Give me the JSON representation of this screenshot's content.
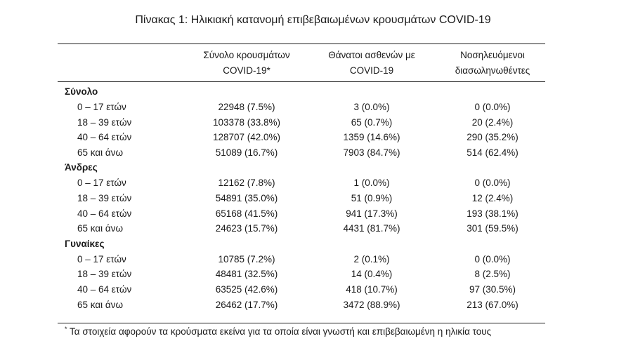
{
  "title": "Πίνακας 1: Ηλικιακή κατανομή επιβεβαιωμένων κρουσμάτων COVID-19",
  "headers": [
    {
      "line1": "Σύνολο κρουσμάτων",
      "line2": "COVID-19*"
    },
    {
      "line1": "Θάνατοι ασθενών με",
      "line2": "COVID-19"
    },
    {
      "line1": "Νοσηλευόμενοι",
      "line2": "διασωληνωθέντες"
    }
  ],
  "groups": [
    {
      "label": "Σύνολο",
      "rows": [
        {
          "age": "0 – 17 ετών",
          "cases": "22948 (7.5%)",
          "deaths": "3 (0.0%)",
          "intubated": "0 (0.0%)"
        },
        {
          "age": "18 – 39 ετών",
          "cases": "103378 (33.8%)",
          "deaths": "65 (0.7%)",
          "intubated": "20 (2.4%)"
        },
        {
          "age": "40 – 64 ετών",
          "cases": "128707 (42.0%)",
          "deaths": "1359 (14.6%)",
          "intubated": "290 (35.2%)"
        },
        {
          "age": "65 και άνω",
          "cases": "51089 (16.7%)",
          "deaths": "7903 (84.7%)",
          "intubated": "514 (62.4%)"
        }
      ]
    },
    {
      "label": "Άνδρες",
      "rows": [
        {
          "age": "0 – 17 ετών",
          "cases": "12162 (7.8%)",
          "deaths": "1 (0.0%)",
          "intubated": "0 (0.0%)"
        },
        {
          "age": "18 – 39 ετών",
          "cases": "54891 (35.0%)",
          "deaths": "51 (0.9%)",
          "intubated": "12 (2.4%)"
        },
        {
          "age": "40 – 64 ετών",
          "cases": "65168 (41.5%)",
          "deaths": "941 (17.3%)",
          "intubated": "193 (38.1%)"
        },
        {
          "age": "65 και άνω",
          "cases": "24623 (15.7%)",
          "deaths": "4431 (81.7%)",
          "intubated": "301 (59.5%)"
        }
      ]
    },
    {
      "label": "Γυναίκες",
      "rows": [
        {
          "age": "0 – 17 ετών",
          "cases": "10785 (7.2%)",
          "deaths": "2 (0.1%)",
          "intubated": "0 (0.0%)"
        },
        {
          "age": "18 – 39 ετών",
          "cases": "48481 (32.5%)",
          "deaths": "14 (0.4%)",
          "intubated": "8 (2.5%)"
        },
        {
          "age": "40 – 64 ετών",
          "cases": "63525 (42.6%)",
          "deaths": "418 (10.7%)",
          "intubated": "97 (30.5%)"
        },
        {
          "age": "65 και άνω",
          "cases": "26462 (17.7%)",
          "deaths": "3472 (88.9%)",
          "intubated": "213 (67.0%)"
        }
      ]
    }
  ],
  "footnote": {
    "marker": "*",
    "text": "Τα στοιχεία αφορούν τα κρούσματα εκείνα για τα οποία είναι γνωστή και επιβεβαιωμένη η ηλικία τους"
  }
}
